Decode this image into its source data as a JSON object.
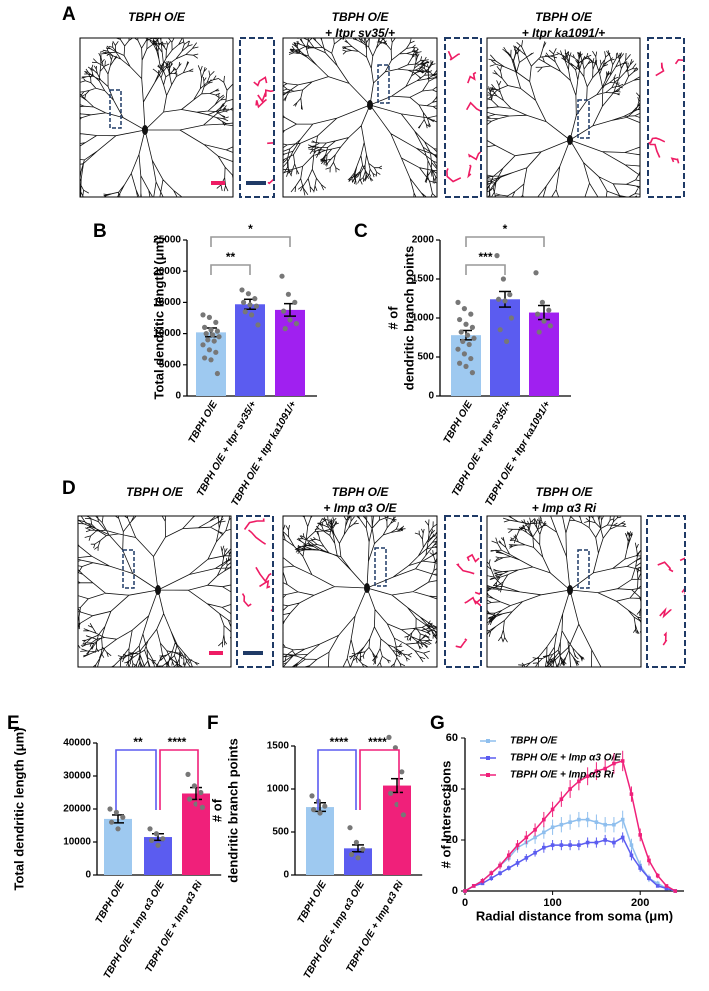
{
  "panels": [
    {
      "label": "A",
      "titles": [
        [
          "TBPH O/E"
        ],
        [
          "TBPH O/E",
          "+ Itpr sv35/+"
        ],
        [
          "TBPH O/E",
          "+ Itpr ka1091/+"
        ]
      ]
    },
    {
      "label": "D",
      "titles": [
        [
          "TBPH O/E"
        ],
        [
          "TBPH O/E",
          "+ Imp α3 O/E"
        ],
        [
          "TBPH O/E",
          "+ Imp α3 Ri"
        ]
      ]
    }
  ],
  "chart_data": [
    {
      "type": "bar",
      "panel": "B",
      "ylabel": [
        "Total dendritic length (μm)"
      ],
      "categories": [
        "TBPH O/E",
        "TBPH O/E + Itpr sv35/+",
        "TBPH O/E + Itpr ka1091/+"
      ],
      "values": [
        10200,
        14700,
        13800
      ],
      "errors": [
        700,
        800,
        1000
      ],
      "colors": [
        "#9ec9f0",
        "#5b5cf0",
        "#a020f0"
      ],
      "points": [
        [
          13000,
          12600,
          11800,
          11000,
          10600,
          10400,
          10000,
          9800,
          9500,
          9000,
          8800,
          8200,
          7400,
          7000,
          6100,
          5800,
          3600
        ],
        [
          17000,
          16400,
          15600,
          15000,
          14600,
          14400,
          13500,
          13000,
          11400
        ],
        [
          19200,
          16300,
          15000,
          13600,
          12200,
          11600,
          10800
        ]
      ],
      "comparisons": [
        {
          "label": "**",
          "pair": [
            0,
            1
          ],
          "color": "#999999"
        },
        {
          "label": "*",
          "pair": [
            0,
            2
          ],
          "color": "#999999"
        }
      ],
      "ylim": [
        0,
        25000
      ],
      "yticks": [
        0,
        5000,
        10000,
        15000,
        20000,
        25000
      ]
    },
    {
      "type": "bar",
      "panel": "C",
      "ylabel": [
        "# of",
        "dendritic branch points"
      ],
      "categories": [
        "TBPH O/E",
        "TBPH O/E + Itpr sv35/+",
        "TBPH O/E + Itpr ka1091/+"
      ],
      "values": [
        780,
        1240,
        1070
      ],
      "errors": [
        60,
        100,
        90
      ],
      "colors": [
        "#9ec9f0",
        "#5b5cf0",
        "#a020f0"
      ],
      "points": [
        [
          1200,
          1120,
          1050,
          980,
          920,
          880,
          820,
          780,
          740,
          700,
          660,
          600,
          540,
          480,
          420,
          380,
          300
        ],
        [
          1800,
          1500,
          1300,
          1240,
          1220,
          1000,
          850,
          700
        ],
        [
          1580,
          1200,
          1100,
          1050,
          960,
          900,
          820
        ]
      ],
      "comparisons": [
        {
          "label": "***",
          "pair": [
            0,
            1
          ],
          "color": "#999999"
        },
        {
          "label": "*",
          "pair": [
            0,
            2
          ],
          "color": "#999999"
        }
      ],
      "ylim": [
        0,
        2000
      ],
      "yticks": [
        0,
        500,
        1000,
        1500,
        2000
      ]
    },
    {
      "type": "bar",
      "panel": "E",
      "ylabel": [
        "Total dendritic length (μm)"
      ],
      "categories": [
        "TBPH O/E",
        "TBPH O/E + Imp α3 O/E",
        "TBPH O/E + Imp α3 Ri"
      ],
      "values": [
        17000,
        11500,
        24700
      ],
      "errors": [
        1200,
        1000,
        1800
      ],
      "colors": [
        "#9ec9f0",
        "#5b5cf0",
        "#f0207a"
      ],
      "points": [
        [
          20000,
          19000,
          17500,
          16000,
          14000
        ],
        [
          14000,
          12500,
          11000,
          10500,
          9000
        ],
        [
          30500,
          27000,
          25000,
          23000,
          21500,
          20500
        ]
      ],
      "comparisons": [
        {
          "label": "**",
          "pair": [
            0,
            1
          ],
          "color": "#5b5cf0"
        },
        {
          "label": "****",
          "pair": [
            1,
            2
          ],
          "color": "#f0207a"
        }
      ],
      "ylim": [
        0,
        40000
      ],
      "yticks": [
        0,
        10000,
        20000,
        30000,
        40000
      ]
    },
    {
      "type": "bar",
      "panel": "F",
      "ylabel": [
        "# of",
        "dendritic branch points"
      ],
      "categories": [
        "TBPH O/E",
        "TBPH O/E + Imp α3 O/E",
        "TBPH O/E + Imp α3 Ri"
      ],
      "values": [
        790,
        310,
        1040
      ],
      "errors": [
        50,
        40,
        80
      ],
      "colors": [
        "#9ec9f0",
        "#5b5cf0",
        "#f0207a"
      ],
      "points": [
        [
          920,
          860,
          800,
          760,
          720
        ],
        [
          550,
          380,
          300,
          240,
          200
        ],
        [
          1600,
          1480,
          1200,
          950,
          820,
          700
        ]
      ],
      "comparisons": [
        {
          "label": "****",
          "pair": [
            0,
            1
          ],
          "color": "#5b5cf0"
        },
        {
          "label": "****",
          "pair": [
            1,
            2
          ],
          "color": "#f0207a"
        }
      ],
      "ylim": [
        0,
        1500
      ],
      "yticks": [
        0,
        500,
        1000,
        1500
      ]
    },
    {
      "type": "line",
      "panel": "G",
      "xlabel": "Radial distance from soma (μm)",
      "ylabel": "# of Intersections",
      "x": [
        0,
        10,
        20,
        30,
        40,
        50,
        60,
        70,
        80,
        90,
        100,
        110,
        120,
        130,
        140,
        150,
        160,
        170,
        180,
        190,
        200,
        210,
        220,
        230,
        240
      ],
      "series": [
        {
          "name": "TBPH O/E",
          "color": "#8fbfee",
          "values": [
            0,
            2,
            4,
            7,
            10,
            13,
            17,
            19,
            21,
            23,
            25,
            26,
            27,
            28,
            28,
            27,
            26,
            26,
            28,
            18,
            10,
            5,
            3,
            1,
            0
          ],
          "errors": [
            0,
            0.5,
            1,
            1,
            1.5,
            1.5,
            2,
            2,
            2.5,
            2.5,
            3,
            3,
            3,
            3,
            3,
            3,
            3,
            3,
            3.5,
            2.5,
            2,
            1.5,
            1,
            0.5,
            0
          ]
        },
        {
          "name": "TBPH O/E + Imp α3 O/E",
          "color": "#5b5cf0",
          "values": [
            0,
            2,
            3,
            5,
            7,
            9,
            11,
            13,
            15,
            17,
            18,
            18,
            18,
            18,
            19,
            19,
            20,
            19,
            21,
            14,
            9,
            5,
            2,
            1,
            0
          ],
          "errors": [
            0,
            0.5,
            0.5,
            1,
            1,
            1,
            1.5,
            1.5,
            1.5,
            2,
            2,
            2,
            2,
            2,
            2,
            2,
            2,
            2,
            2,
            2,
            1.5,
            1,
            0.5,
            0.5,
            0
          ]
        },
        {
          "name": "TBPH O/E + Imp α3 Ri",
          "color": "#f0207a",
          "values": [
            0,
            2,
            4,
            7,
            10,
            14,
            18,
            21,
            24,
            28,
            32,
            36,
            40,
            43,
            45,
            47,
            48,
            50,
            51,
            38,
            22,
            12,
            6,
            2,
            0
          ],
          "errors": [
            0,
            0.5,
            1,
            1,
            1.5,
            2,
            2,
            2.5,
            2.5,
            3,
            3,
            3,
            3.5,
            3.5,
            3.5,
            3.5,
            3.5,
            4,
            4,
            3,
            2.5,
            2,
            1,
            0.5,
            0
          ]
        }
      ],
      "xlim": [
        0,
        250
      ],
      "xticks": [
        0,
        100,
        200
      ],
      "ylim": [
        0,
        60
      ],
      "yticks": [
        0,
        20,
        40,
        60
      ]
    }
  ]
}
